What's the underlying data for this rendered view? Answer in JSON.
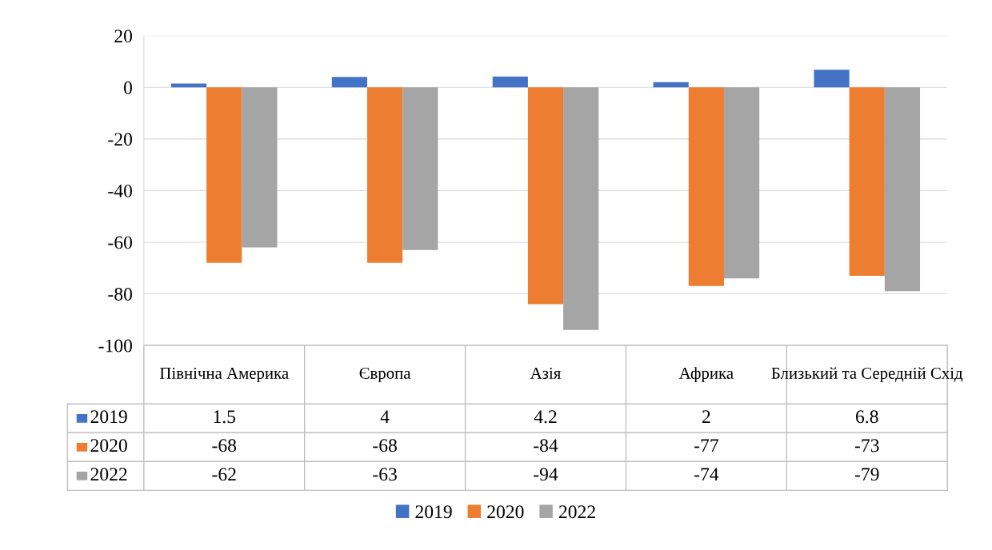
{
  "chart_data": {
    "type": "bar",
    "categories": [
      "Північна Америка",
      "Європа",
      "Азія",
      "Африка",
      "Близький та Середній Схід"
    ],
    "series": [
      {
        "name": "2019",
        "color": "#4472c4",
        "values": [
          1.5,
          4,
          4.2,
          2,
          6.8
        ]
      },
      {
        "name": "2020",
        "color": "#ed7d31",
        "values": [
          -68,
          -68,
          -84,
          -77,
          -73
        ]
      },
      {
        "name": "2022",
        "color": "#a5a5a5",
        "values": [
          -62,
          -63,
          -94,
          -74,
          -79
        ]
      }
    ],
    "ylim": [
      -100,
      20
    ],
    "yticks": [
      -100,
      -80,
      -60,
      -40,
      -20,
      0,
      20
    ],
    "grid": "y",
    "legend": "bottom",
    "data_labels": true
  }
}
